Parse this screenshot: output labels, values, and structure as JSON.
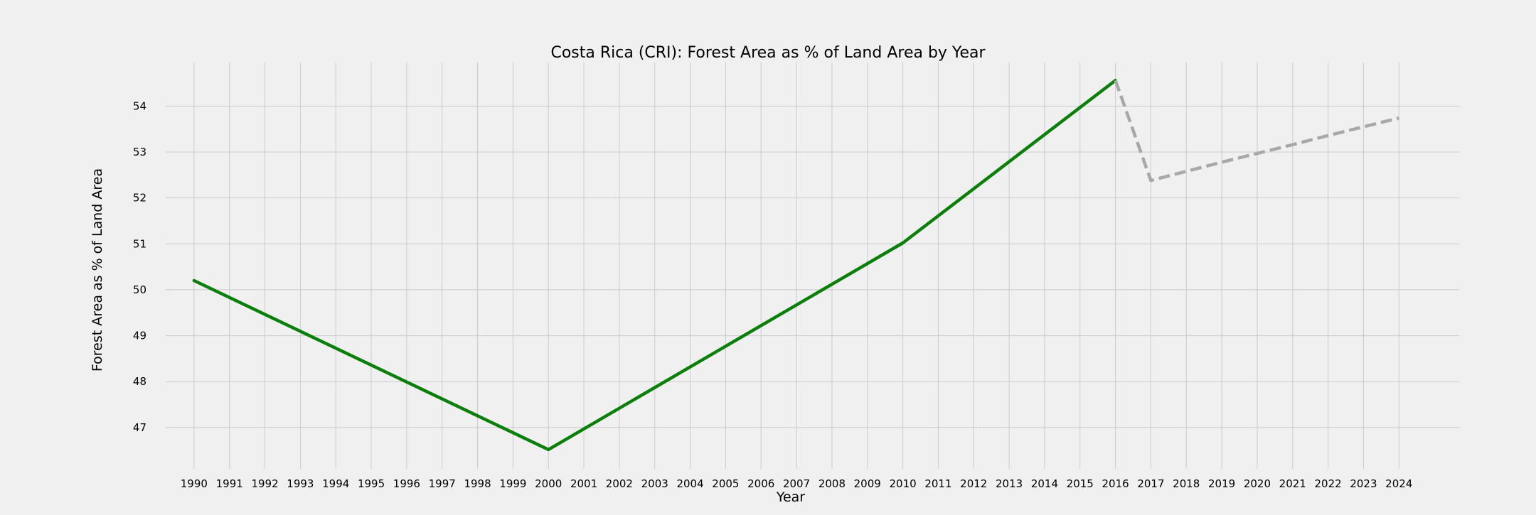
{
  "chart_data": {
    "type": "line",
    "title": "Costa Rica (CRI): Forest Area as % of Land Area by Year",
    "xlabel": "Year",
    "ylabel": "Forest Area as % of Land Area",
    "x": [
      1990,
      1991,
      1992,
      1993,
      1994,
      1995,
      1996,
      1997,
      1998,
      1999,
      2000,
      2001,
      2002,
      2003,
      2004,
      2005,
      2006,
      2007,
      2008,
      2009,
      2010,
      2011,
      2012,
      2013,
      2014,
      2015,
      2016,
      2017,
      2018,
      2019,
      2020,
      2021,
      2022,
      2023,
      2024
    ],
    "xlim": [
      1989.2,
      2025.7
    ],
    "ylim": [
      46.1,
      54.95
    ],
    "yticks": [
      47,
      48,
      49,
      50,
      51,
      52,
      53,
      54
    ],
    "grid": true,
    "series": [
      {
        "style": "solid",
        "color": "#0a7f0a",
        "points": [
          [
            1990,
            50.2
          ],
          [
            2000,
            46.52
          ],
          [
            2010,
            51.02
          ],
          [
            2016,
            54.56
          ]
        ]
      },
      {
        "style": "dashed",
        "color": "#a8a8a8",
        "points": [
          [
            2016,
            54.56
          ],
          [
            2017,
            52.38
          ],
          [
            2018,
            52.58
          ],
          [
            2019,
            52.78
          ],
          [
            2020,
            52.97
          ],
          [
            2021,
            53.16
          ],
          [
            2022,
            53.36
          ],
          [
            2023,
            53.55
          ],
          [
            2024,
            53.74
          ]
        ]
      }
    ]
  }
}
